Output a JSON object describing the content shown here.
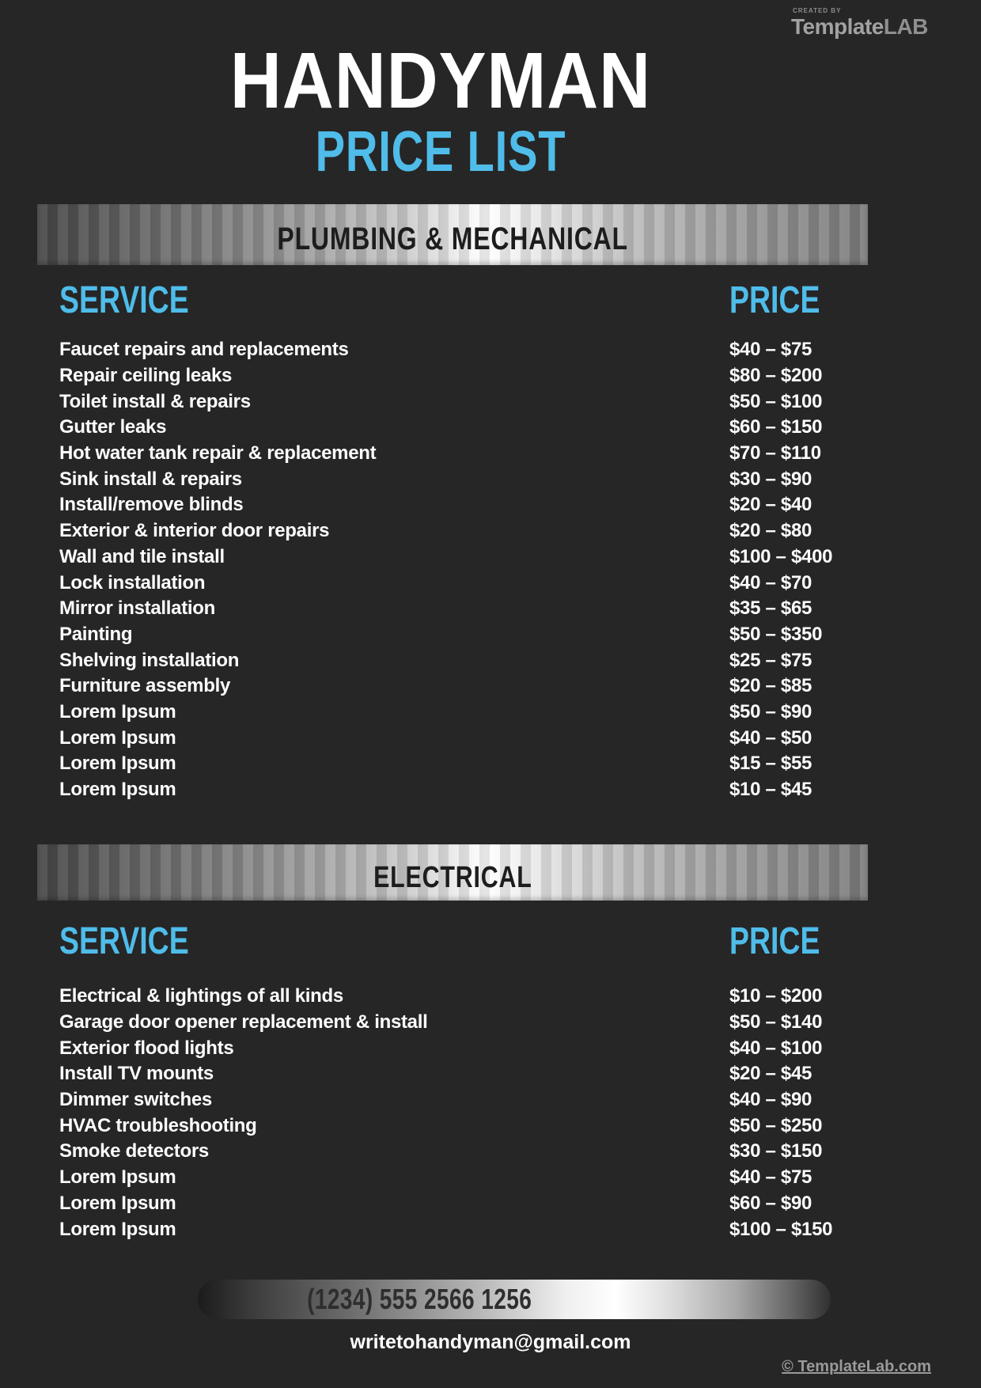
{
  "page": {
    "background_color": "#262626",
    "accent_blue": "#4fbce9",
    "band_text_color": "#1d1d1d"
  },
  "logo": {
    "created_by": "CREATED BY",
    "brand_template": "Template",
    "brand_lab": "LAB"
  },
  "header": {
    "title": "HANDYMAN",
    "subtitle": "PRICE LIST"
  },
  "sections": [
    {
      "title": "PLUMBING & MECHANICAL",
      "service_header": "SERVICE",
      "price_header": "PRICE",
      "rows": [
        {
          "service": "Faucet repairs and replacements",
          "price": "$40 – $75"
        },
        {
          "service": "Repair ceiling leaks",
          "price": "$80 – $200"
        },
        {
          "service": "Toilet install & repairs",
          "price": "$50 – $100"
        },
        {
          "service": "Gutter leaks",
          "price": "$60 – $150"
        },
        {
          "service": "Hot water tank repair & replacement",
          "price": "$70 – $110"
        },
        {
          "service": "Sink install & repairs",
          "price": "$30 – $90"
        },
        {
          "service": "Install/remove blinds",
          "price": "$20 – $40"
        },
        {
          "service": "Exterior & interior door repairs",
          "price": "$20 – $80"
        },
        {
          "service": "Wall and tile install",
          "price": "$100 – $400"
        },
        {
          "service": "Lock installation",
          "price": "$40 – $70"
        },
        {
          "service": "Mirror installation",
          "price": "$35 – $65"
        },
        {
          "service": "Painting",
          "price": "$50 – $350"
        },
        {
          "service": "Shelving installation",
          "price": "$25 – $75"
        },
        {
          "service": "Furniture assembly",
          "price": "$20 – $85"
        },
        {
          "service": "Lorem Ipsum",
          "price": "$50 – $90"
        },
        {
          "service": "Lorem Ipsum",
          "price": "$40 – $50"
        },
        {
          "service": "Lorem Ipsum",
          "price": "$15 – $55"
        },
        {
          "service": "Lorem Ipsum",
          "price": "$10 – $45"
        }
      ]
    },
    {
      "title": "ELECTRICAL",
      "service_header": "SERVICE",
      "price_header": "PRICE",
      "rows": [
        {
          "service": "Electrical & lightings of all kinds",
          "price": "$10 – $200"
        },
        {
          "service": "Garage door opener replacement & install",
          "price": "$50 – $140"
        },
        {
          "service": "Exterior flood lights",
          "price": "$40 – $100"
        },
        {
          "service": "Install TV mounts",
          "price": "$20 – $45"
        },
        {
          "service": "Dimmer switches",
          "price": "$40 – $90"
        },
        {
          "service": "HVAC troubleshooting",
          "price": "$50 – $250"
        },
        {
          "service": "Smoke detectors",
          "price": "$30 – $150"
        },
        {
          "service": "Lorem Ipsum",
          "price": "$40 – $75"
        },
        {
          "service": "Lorem Ipsum",
          "price": "$60 – $90"
        },
        {
          "service": "Lorem Ipsum",
          "price": "$100 – $150"
        }
      ]
    }
  ],
  "footer": {
    "phone": "(1234) 555 2566 1256",
    "email": "writetohandyman@gmail.com",
    "copyright": "© TemplateLab.com"
  }
}
